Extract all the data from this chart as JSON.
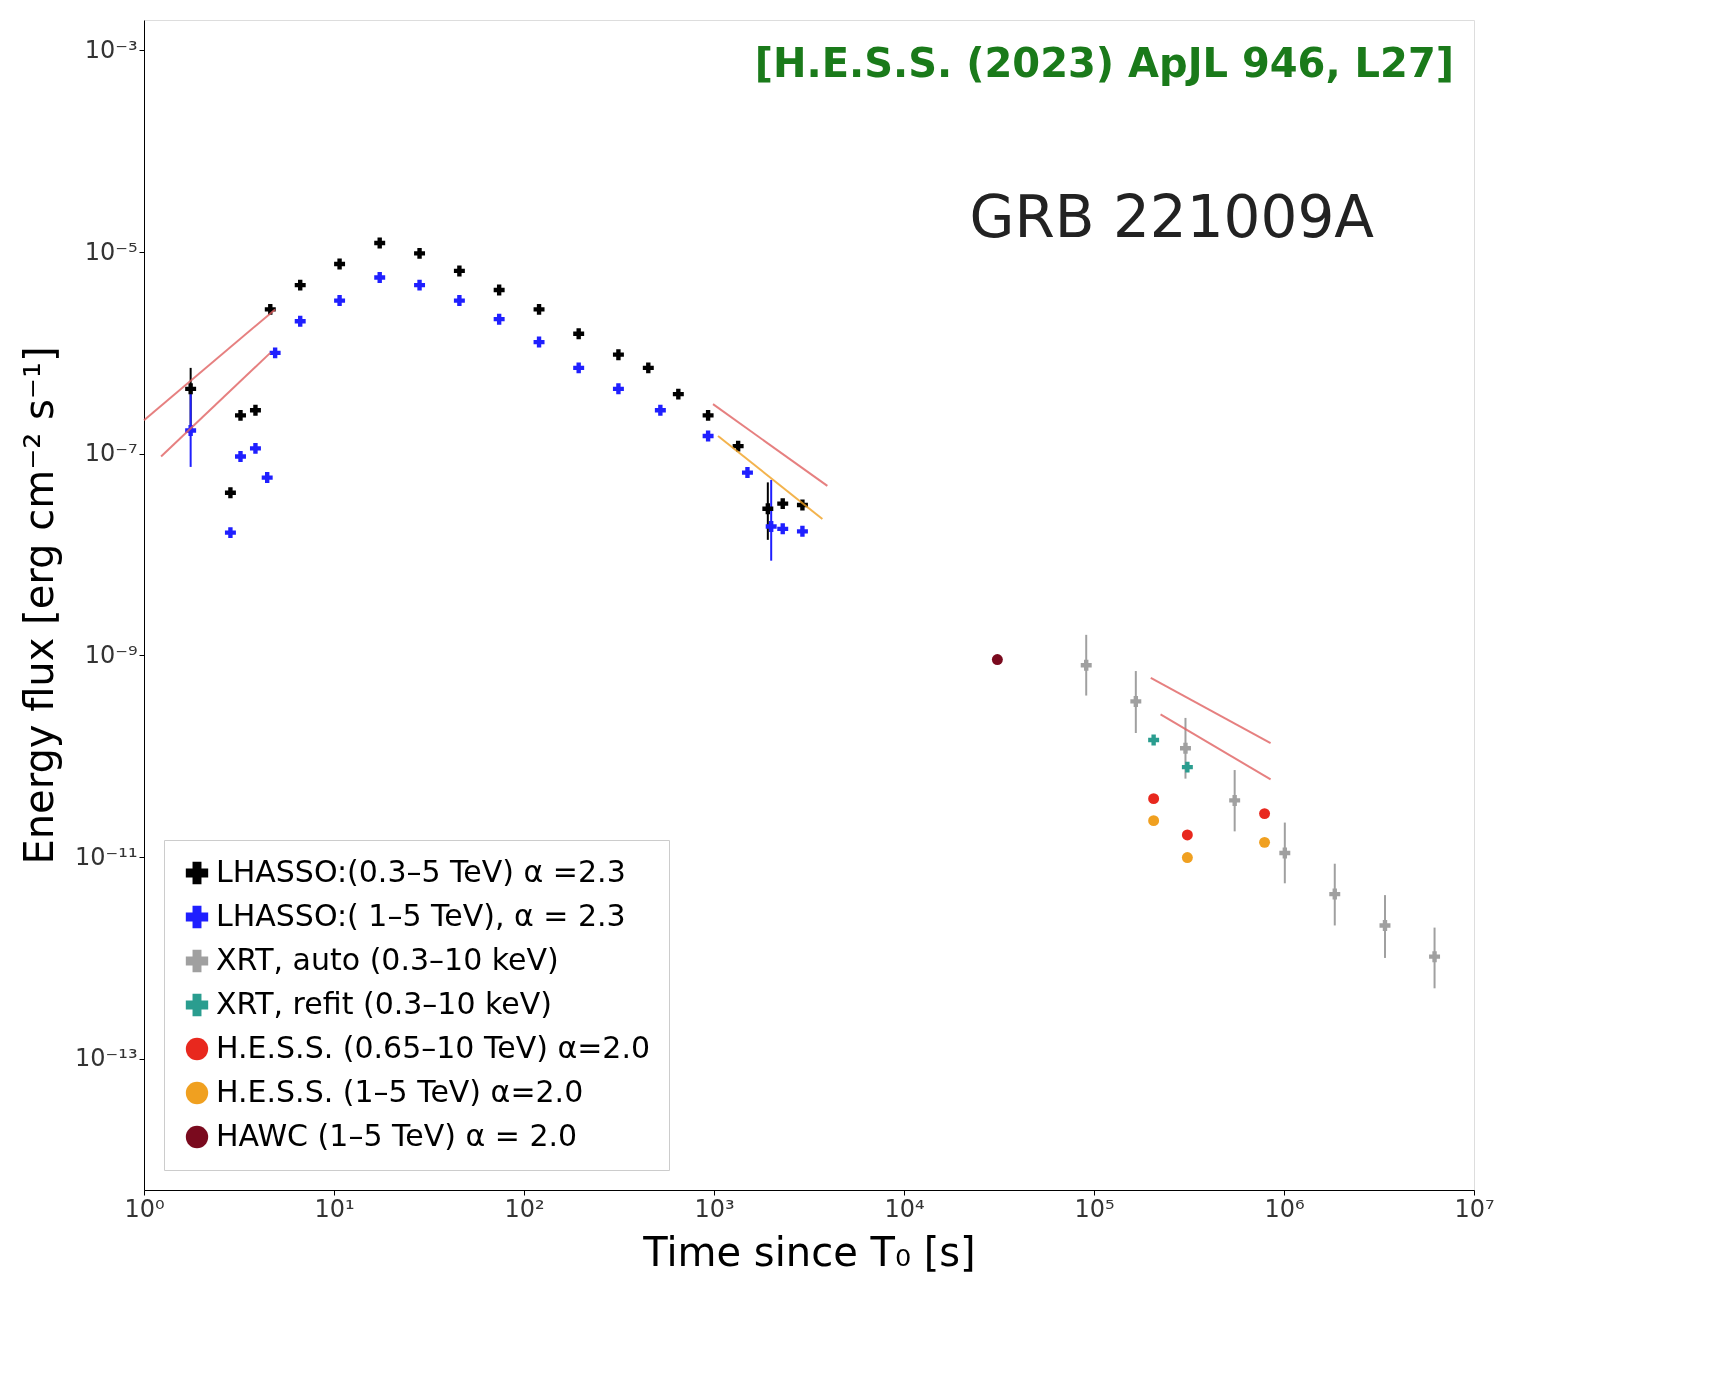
{
  "chart_data": {
    "type": "scatter",
    "xlabel": "Time since T₀ [s]",
    "ylabel": "Energy flux [erg cm⁻² s⁻¹]",
    "log": "xy",
    "grid": false,
    "legend": "bottom left",
    "marker": "cross",
    "xlim": [
      1,
      10000000
    ],
    "ylim": [
      5e-15,
      0.002
    ],
    "xticks": [
      {
        "value": 1,
        "label": "10⁰"
      },
      {
        "value": 10,
        "label": "10¹"
      },
      {
        "value": 100,
        "label": "10²"
      },
      {
        "value": 1000,
        "label": "10³"
      },
      {
        "value": 10000,
        "label": "10⁴"
      },
      {
        "value": 100000,
        "label": "10⁵"
      },
      {
        "value": 1000000,
        "label": "10⁶"
      },
      {
        "value": 10000000,
        "label": "10⁷"
      }
    ],
    "yticks": [
      {
        "value": 0.001,
        "label": "10⁻³"
      },
      {
        "value": 1e-05,
        "label": "10⁻⁵"
      },
      {
        "value": 1e-07,
        "label": "10⁻⁷"
      },
      {
        "value": 1e-09,
        "label": "10⁻⁹"
      },
      {
        "value": 1e-11,
        "label": "10⁻¹¹"
      },
      {
        "value": 1e-13,
        "label": "10⁻¹³"
      }
    ],
    "annotations": [
      "[H.E.S.S. (2023) ApJL 946, L27]",
      "GRB 221009A"
    ],
    "series": [
      {
        "name": "LHASSO:(0.3–5 TeV) α =2.3",
        "color": "#000000",
        "x": [
          1.76,
          2.85,
          3.22,
          3.86,
          4.62,
          6.64,
          10.7,
          17.4,
          28.2,
          45.7,
          74,
          120,
          194,
          314,
          451,
          649,
          931,
          1340,
          1920,
          2300,
          2920
        ],
        "values": [
          4.4e-07,
          4.1e-08,
          2.4e-07,
          2.7e-07,
          2.7e-06,
          4.7e-06,
          7.6e-06,
          1.23e-05,
          9.7e-06,
          6.5e-06,
          4.2e-06,
          2.7e-06,
          1.55e-06,
          9.6e-07,
          7.1e-07,
          3.9e-07,
          2.4e-07,
          1.19e-07,
          2.85e-08,
          3.2e-08,
          3.1e-08
        ],
        "errors": [
          [
            1.9e-07,
            7.1e-07
          ],
          null,
          null,
          null,
          null,
          null,
          null,
          null,
          null,
          null,
          null,
          null,
          null,
          null,
          null,
          null,
          null,
          null,
          [
            1.4e-08,
            5.2e-08
          ],
          null,
          null
        ]
      },
      {
        "name": "LHASSO:( 1–5 TeV), α = 2.3",
        "color": "#1f1fff",
        "x": [
          1.76,
          2.85,
          3.22,
          3.86,
          4.45,
          4.9,
          6.64,
          10.7,
          17.4,
          28.2,
          45.7,
          74,
          120,
          194,
          314,
          522,
          931,
          1500,
          2000,
          2300,
          2920
        ],
        "values": [
          1.7e-07,
          1.65e-08,
          9.4e-08,
          1.13e-07,
          5.8e-08,
          1e-06,
          2.06e-06,
          3.3e-06,
          5.6e-06,
          4.7e-06,
          3.3e-06,
          2.16e-06,
          1.28e-06,
          7.1e-07,
          4.4e-07,
          2.7e-07,
          1.5e-07,
          6.5e-08,
          1.9e-08,
          1.8e-08,
          1.7e-08
        ],
        "errors": [
          [
            7.4e-08,
            4.4e-07
          ],
          null,
          null,
          null,
          null,
          null,
          null,
          null,
          null,
          null,
          null,
          null,
          null,
          null,
          null,
          null,
          null,
          null,
          [
            8.7e-09,
            5.5e-08
          ],
          null,
          null
        ]
      },
      {
        "name": "XRT, auto (0.3–10 keV)",
        "color": "#a0a0a0",
        "x": [
          91000,
          166000,
          303000,
          550000,
          1010000,
          1850000,
          3400000,
          6200000
        ],
        "values": [
          8e-10,
          3.5e-10,
          1.2e-10,
          3.65e-11,
          1.1e-11,
          4.3e-12,
          2.1e-12,
          1.03e-12
        ],
        "errors": [
          [
            4e-10,
            1.6e-09
          ],
          [
            1.7e-10,
            7e-10
          ],
          [
            6e-11,
            2.4e-10
          ],
          [
            1.8e-11,
            7.3e-11
          ],
          [
            5.5e-12,
            2.2e-11
          ],
          [
            2.1e-12,
            8.6e-12
          ],
          [
            1e-12,
            4.2e-12
          ],
          [
            5e-13,
            2e-12
          ]
        ]
      },
      {
        "name": "XRT, refit (0.3–10 keV)",
        "color": "#2a9d8f",
        "x": [
          206000,
          310000
        ],
        "values": [
          1.45e-10,
          7.8e-11
        ]
      },
      {
        "name": "H.E.S.S. (0.65–10 TeV) α=2.0",
        "color": "#e8281e",
        "marker": "circle",
        "x": [
          206000,
          310000,
          790000
        ],
        "values": [
          3.8e-11,
          1.66e-11,
          2.7e-11
        ]
      },
      {
        "name": "H.E.S.S. (1–5 TeV) α=2.0",
        "color": "#f0a020",
        "marker": "circle",
        "x": [
          206000,
          310000,
          790000
        ],
        "values": [
          2.3e-11,
          9.9e-12,
          1.4e-11
        ]
      },
      {
        "name": "HAWC (1–5 TeV) α = 2.0",
        "color": "#7a0a1e",
        "marker": "circle",
        "x": [
          31000
        ],
        "values": [
          9.1e-10
        ]
      },
      {
        "type": "line",
        "marker": "none",
        "color": "#e06060",
        "x": [
          1,
          4.9
        ],
        "values": [
          2.15e-07,
          2.7e-06
        ]
      },
      {
        "type": "line",
        "marker": "none",
        "color": "#e06060",
        "x": [
          1.23,
          4.62
        ],
        "values": [
          9.4e-08,
          1e-06
        ]
      },
      {
        "type": "line",
        "marker": "none",
        "color": "#e06060",
        "x": [
          988,
          3950
        ],
        "values": [
          3.1e-07,
          4.8e-08
        ]
      },
      {
        "type": "line",
        "marker": "none",
        "color": "#f0a020",
        "x": [
          1050,
          3720
        ],
        "values": [
          1.5e-07,
          2.25e-08
        ]
      },
      {
        "type": "line",
        "marker": "none",
        "color": "#e06060",
        "x": [
          199000,
          850000
        ],
        "values": [
          6e-10,
          1.35e-10
        ]
      },
      {
        "type": "line",
        "marker": "none",
        "color": "#e06060",
        "x": [
          224000,
          850000
        ],
        "values": [
          2.6e-10,
          5.9e-11
        ]
      }
    ]
  }
}
